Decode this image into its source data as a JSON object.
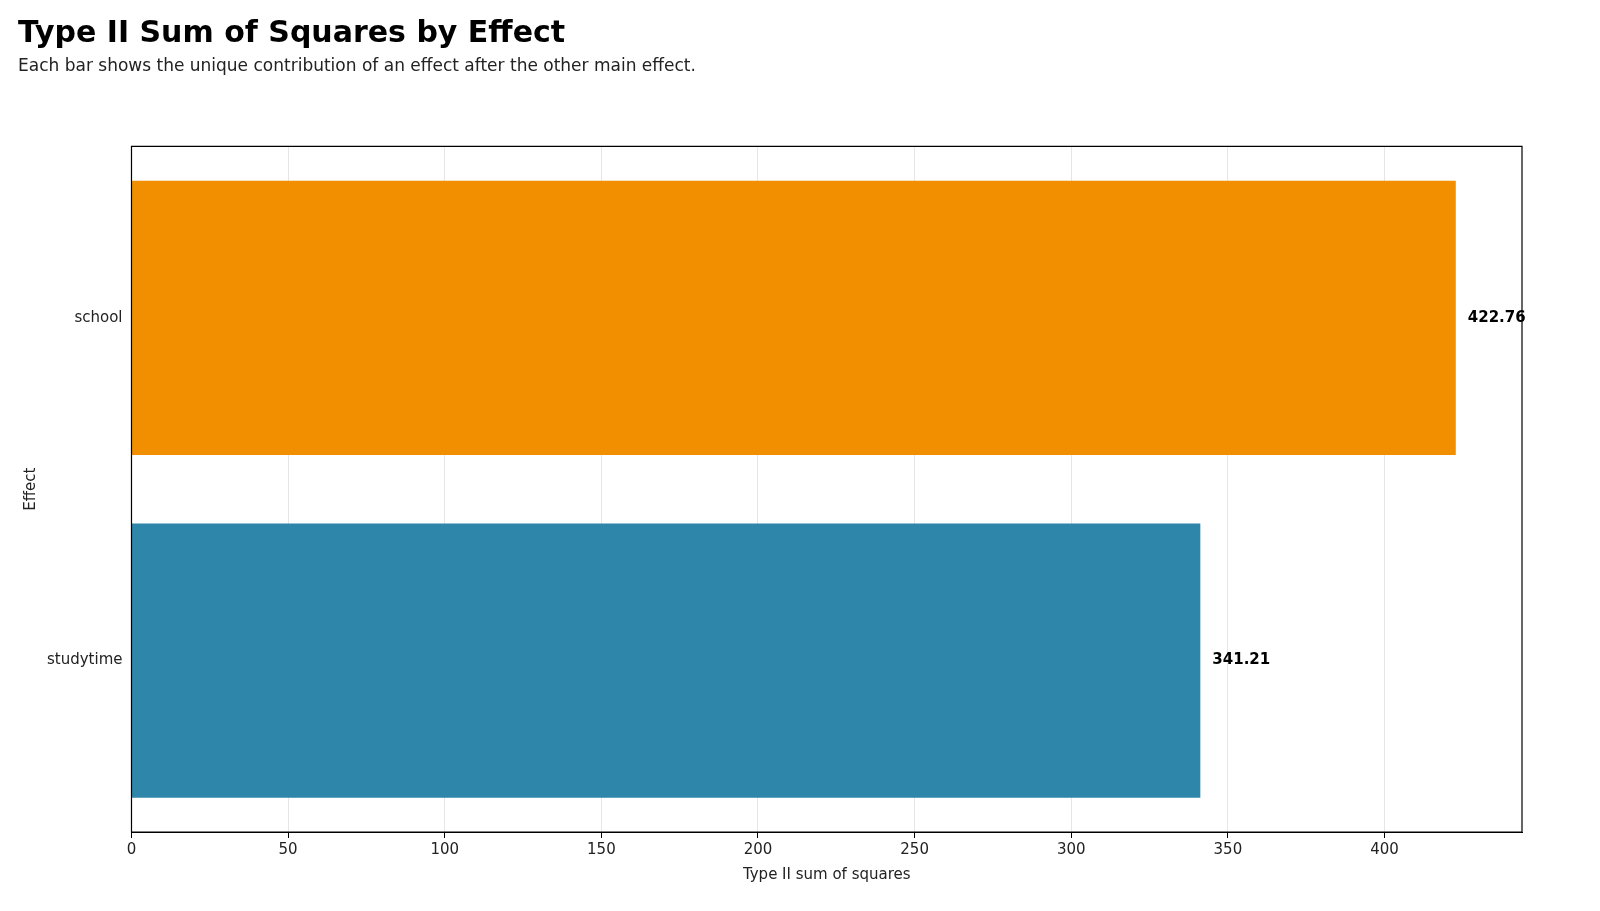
{
  "chart_data": {
    "type": "bar",
    "orientation": "horizontal",
    "title": "Type II Sum of Squares by Effect",
    "subtitle": "Each bar shows the unique contribution of an effect after the other main effect.",
    "xlabel": "Type II sum of squares",
    "ylabel": "Effect",
    "categories": [
      "school",
      "studytime"
    ],
    "values": [
      422.76,
      341.21
    ],
    "colors": [
      "#f18f01",
      "#2e86ab"
    ],
    "xlim": [
      0,
      443.9
    ],
    "xticks": [
      0,
      50,
      100,
      150,
      200,
      250,
      300,
      350,
      400
    ],
    "grid": "x",
    "data_labels": true,
    "legend": false
  }
}
